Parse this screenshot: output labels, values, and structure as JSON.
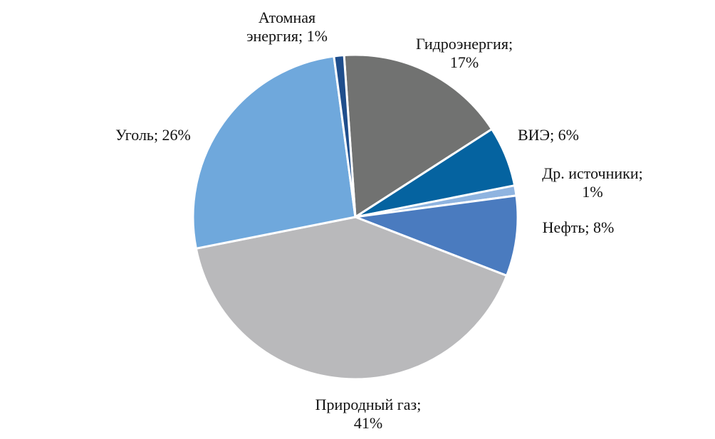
{
  "chart_data": {
    "type": "pie",
    "values": [
      17,
      6,
      1,
      8,
      41,
      26,
      1
    ],
    "value_labels": [
      "Гидроэнергия; 17%",
      "ВИЭ; 6%",
      "Др. источники; 1%",
      "Нефть; 8%",
      "Природный газ; 41%",
      "Уголь; 26%",
      "Атомная энергия; 1%"
    ],
    "colors": [
      "#717271",
      "#0563a0",
      "#8fb4e0",
      "#4a7bbf",
      "#b9b9bb",
      "#6fa8dc",
      "#1f4e8c"
    ]
  }
}
